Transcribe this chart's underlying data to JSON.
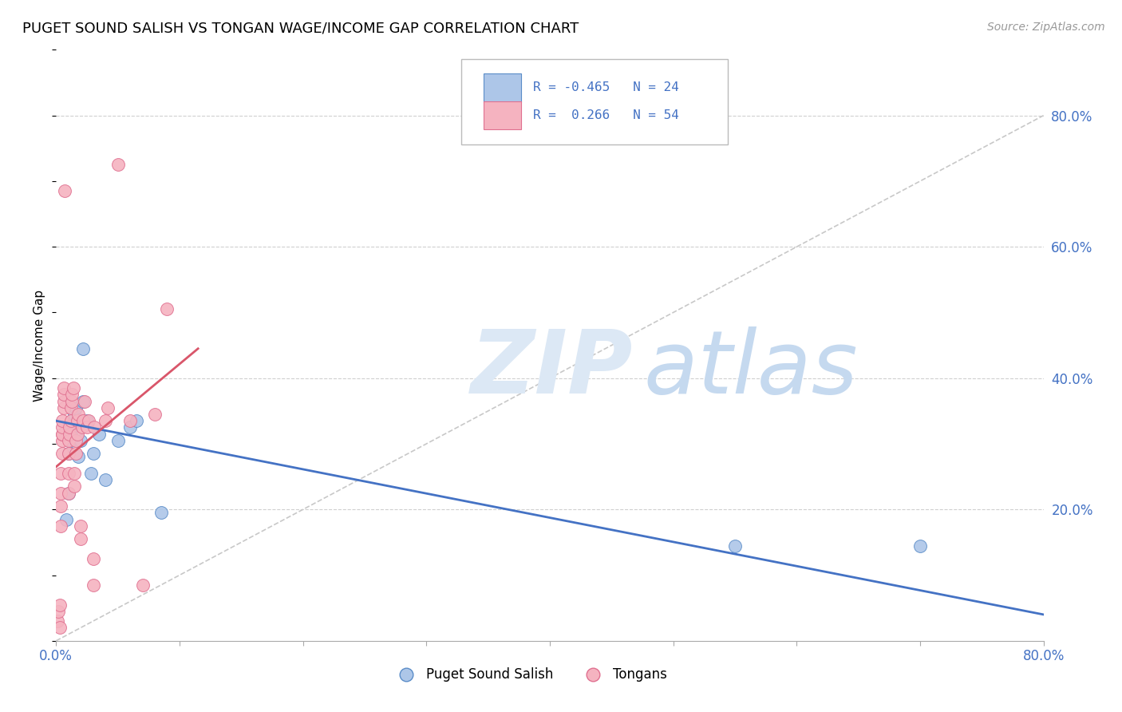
{
  "title": "PUGET SOUND SALISH VS TONGAN WAGE/INCOME GAP CORRELATION CHART",
  "source": "Source: ZipAtlas.com",
  "ylabel": "Wage/Income Gap",
  "xlim": [
    0.0,
    0.8
  ],
  "ylim": [
    0.0,
    0.9
  ],
  "xtick_positions": [
    0.0,
    0.1,
    0.2,
    0.3,
    0.4,
    0.5,
    0.6,
    0.7,
    0.8
  ],
  "xtick_labels": [
    "0.0%",
    "",
    "",
    "",
    "",
    "",
    "",
    "",
    "80.0%"
  ],
  "ytick_positions": [
    0.2,
    0.4,
    0.6,
    0.8
  ],
  "ytick_labels": [
    "20.0%",
    "40.0%",
    "60.0%",
    "80.0%"
  ],
  "blue_R": "-0.465",
  "blue_N": "24",
  "pink_R": "0.266",
  "pink_N": "54",
  "blue_fill": "#adc6e8",
  "pink_fill": "#f5b3c0",
  "blue_edge": "#5b8dc8",
  "pink_edge": "#e07090",
  "blue_line_color": "#4472c4",
  "pink_line_color": "#d9566a",
  "diagonal_color": "#c8c8c8",
  "legend_text_color": "#4472c4",
  "watermark_ZIP_color": "#dce8f5",
  "watermark_atlas_color": "#c5d9ef",
  "background_color": "#ffffff",
  "grid_color": "#d0d0d0",
  "blue_line": [
    [
      0.0,
      0.335
    ],
    [
      0.8,
      0.04
    ]
  ],
  "pink_line": [
    [
      0.0,
      0.265
    ],
    [
      0.115,
      0.445
    ]
  ],
  "blue_points": [
    [
      0.008,
      0.185
    ],
    [
      0.01,
      0.225
    ],
    [
      0.01,
      0.285
    ],
    [
      0.012,
      0.305
    ],
    [
      0.012,
      0.315
    ],
    [
      0.013,
      0.325
    ],
    [
      0.014,
      0.335
    ],
    [
      0.015,
      0.345
    ],
    [
      0.016,
      0.355
    ],
    [
      0.018,
      0.28
    ],
    [
      0.02,
      0.305
    ],
    [
      0.022,
      0.365
    ],
    [
      0.022,
      0.445
    ],
    [
      0.025,
      0.335
    ],
    [
      0.028,
      0.255
    ],
    [
      0.03,
      0.285
    ],
    [
      0.035,
      0.315
    ],
    [
      0.04,
      0.245
    ],
    [
      0.05,
      0.305
    ],
    [
      0.06,
      0.325
    ],
    [
      0.065,
      0.335
    ],
    [
      0.085,
      0.195
    ],
    [
      0.55,
      0.145
    ],
    [
      0.7,
      0.145
    ]
  ],
  "pink_points": [
    [
      0.001,
      0.03
    ],
    [
      0.002,
      0.045
    ],
    [
      0.003,
      0.02
    ],
    [
      0.003,
      0.055
    ],
    [
      0.004,
      0.175
    ],
    [
      0.004,
      0.205
    ],
    [
      0.004,
      0.225
    ],
    [
      0.004,
      0.255
    ],
    [
      0.005,
      0.285
    ],
    [
      0.005,
      0.305
    ],
    [
      0.005,
      0.315
    ],
    [
      0.005,
      0.315
    ],
    [
      0.005,
      0.325
    ],
    [
      0.005,
      0.335
    ],
    [
      0.006,
      0.355
    ],
    [
      0.006,
      0.365
    ],
    [
      0.006,
      0.375
    ],
    [
      0.006,
      0.385
    ],
    [
      0.007,
      0.685
    ],
    [
      0.01,
      0.225
    ],
    [
      0.01,
      0.255
    ],
    [
      0.01,
      0.285
    ],
    [
      0.01,
      0.305
    ],
    [
      0.011,
      0.315
    ],
    [
      0.011,
      0.325
    ],
    [
      0.012,
      0.335
    ],
    [
      0.012,
      0.355
    ],
    [
      0.013,
      0.365
    ],
    [
      0.013,
      0.375
    ],
    [
      0.014,
      0.385
    ],
    [
      0.015,
      0.235
    ],
    [
      0.015,
      0.255
    ],
    [
      0.016,
      0.285
    ],
    [
      0.016,
      0.305
    ],
    [
      0.017,
      0.315
    ],
    [
      0.017,
      0.335
    ],
    [
      0.018,
      0.345
    ],
    [
      0.02,
      0.155
    ],
    [
      0.02,
      0.175
    ],
    [
      0.021,
      0.325
    ],
    [
      0.022,
      0.335
    ],
    [
      0.023,
      0.365
    ],
    [
      0.025,
      0.325
    ],
    [
      0.026,
      0.335
    ],
    [
      0.03,
      0.085
    ],
    [
      0.03,
      0.125
    ],
    [
      0.031,
      0.325
    ],
    [
      0.04,
      0.335
    ],
    [
      0.042,
      0.355
    ],
    [
      0.05,
      0.725
    ],
    [
      0.06,
      0.335
    ],
    [
      0.07,
      0.085
    ],
    [
      0.08,
      0.345
    ],
    [
      0.09,
      0.505
    ]
  ]
}
